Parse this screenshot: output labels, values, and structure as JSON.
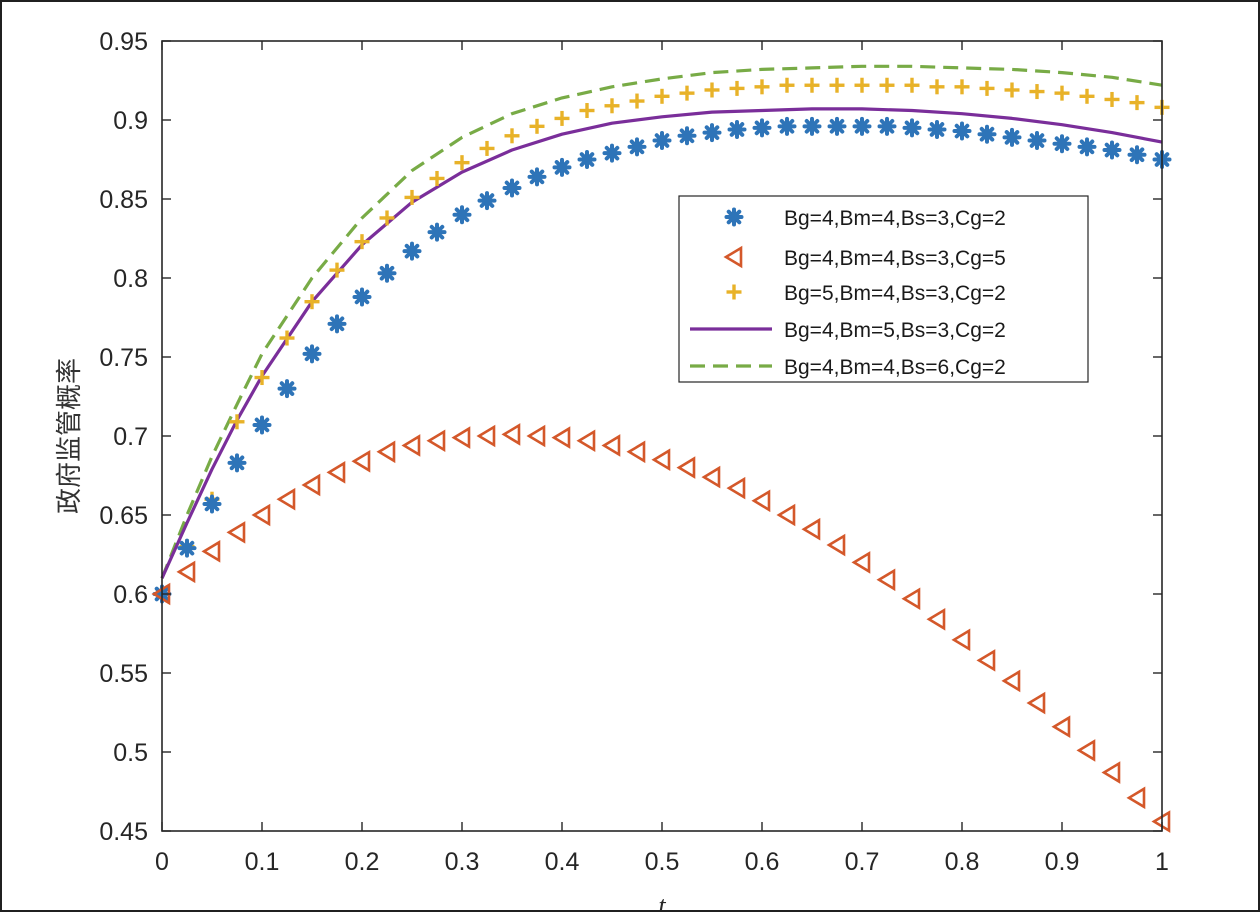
{
  "chart_data": {
    "type": "line",
    "title": "",
    "xlabel": "t",
    "ylabel": "政府监管概率",
    "xlim": [
      0,
      1
    ],
    "ylim": [
      0.45,
      0.95
    ],
    "xticks": [
      0,
      0.1,
      0.2,
      0.3,
      0.4,
      0.5,
      0.6,
      0.7,
      0.8,
      0.9,
      1
    ],
    "xtick_labels": [
      "0",
      "0.1",
      "0.2",
      "0.3",
      "0.4",
      "0.5",
      "0.6",
      "0.7",
      "0.8",
      "0.9",
      "1"
    ],
    "yticks": [
      0.45,
      0.5,
      0.55,
      0.6,
      0.65,
      0.7,
      0.75,
      0.8,
      0.85,
      0.9,
      0.95
    ],
    "ytick_labels": [
      "0.45",
      "0.5",
      "0.55",
      "0.6",
      "0.65",
      "0.7",
      "0.75",
      "0.8",
      "0.85",
      "0.9",
      "0.95"
    ],
    "legend_position": "upper-right",
    "series": [
      {
        "name": "Bg=4,Bm=4,Bs=3,Cg=2",
        "marker": "asterisk",
        "color": "#2e74b8",
        "x": [
          0,
          0.025,
          0.05,
          0.075,
          0.1,
          0.125,
          0.15,
          0.175,
          0.2,
          0.225,
          0.25,
          0.275,
          0.3,
          0.325,
          0.35,
          0.375,
          0.4,
          0.425,
          0.45,
          0.475,
          0.5,
          0.525,
          0.55,
          0.575,
          0.6,
          0.625,
          0.65,
          0.675,
          0.7,
          0.725,
          0.75,
          0.775,
          0.8,
          0.825,
          0.85,
          0.875,
          0.9,
          0.925,
          0.95,
          0.975,
          1.0
        ],
        "y": [
          0.6,
          0.629,
          0.657,
          0.683,
          0.707,
          0.73,
          0.752,
          0.771,
          0.788,
          0.803,
          0.817,
          0.829,
          0.84,
          0.849,
          0.857,
          0.864,
          0.87,
          0.875,
          0.879,
          0.883,
          0.887,
          0.89,
          0.892,
          0.894,
          0.895,
          0.896,
          0.896,
          0.896,
          0.896,
          0.896,
          0.895,
          0.894,
          0.893,
          0.891,
          0.889,
          0.887,
          0.885,
          0.883,
          0.881,
          0.878,
          0.875
        ]
      },
      {
        "name": "Bg=4,Bm=4,Bs=3,Cg=5",
        "marker": "triangle-left",
        "color": "#d4582a",
        "x": [
          0,
          0.025,
          0.05,
          0.075,
          0.1,
          0.125,
          0.15,
          0.175,
          0.2,
          0.225,
          0.25,
          0.275,
          0.3,
          0.325,
          0.35,
          0.375,
          0.4,
          0.425,
          0.45,
          0.475,
          0.5,
          0.525,
          0.55,
          0.575,
          0.6,
          0.625,
          0.65,
          0.675,
          0.7,
          0.725,
          0.75,
          0.775,
          0.8,
          0.825,
          0.85,
          0.875,
          0.9,
          0.925,
          0.95,
          0.975,
          1.0
        ],
        "y": [
          0.6,
          0.614,
          0.627,
          0.639,
          0.65,
          0.66,
          0.669,
          0.677,
          0.684,
          0.69,
          0.694,
          0.697,
          0.699,
          0.7,
          0.701,
          0.7,
          0.699,
          0.697,
          0.694,
          0.69,
          0.685,
          0.68,
          0.674,
          0.667,
          0.659,
          0.65,
          0.641,
          0.631,
          0.62,
          0.609,
          0.597,
          0.584,
          0.571,
          0.558,
          0.545,
          0.531,
          0.516,
          0.501,
          0.487,
          0.471,
          0.456
        ]
      },
      {
        "name": "Bg=5,Bm=4,Bs=3,Cg=2",
        "marker": "plus",
        "color": "#e8b228",
        "x": [
          0,
          0.025,
          0.05,
          0.075,
          0.1,
          0.125,
          0.15,
          0.175,
          0.2,
          0.225,
          0.25,
          0.275,
          0.3,
          0.325,
          0.35,
          0.375,
          0.4,
          0.425,
          0.45,
          0.475,
          0.5,
          0.525,
          0.55,
          0.575,
          0.6,
          0.625,
          0.65,
          0.675,
          0.7,
          0.725,
          0.75,
          0.775,
          0.8,
          0.825,
          0.85,
          0.875,
          0.9,
          0.925,
          0.95,
          0.975,
          1.0
        ],
        "y": [
          0.6,
          0.63,
          0.66,
          0.709,
          0.737,
          0.762,
          0.785,
          0.805,
          0.823,
          0.838,
          0.851,
          0.863,
          0.873,
          0.882,
          0.89,
          0.896,
          0.901,
          0.906,
          0.909,
          0.912,
          0.915,
          0.917,
          0.919,
          0.92,
          0.921,
          0.922,
          0.922,
          0.922,
          0.922,
          0.922,
          0.922,
          0.921,
          0.921,
          0.92,
          0.919,
          0.918,
          0.917,
          0.915,
          0.913,
          0.911,
          0.908
        ]
      },
      {
        "name": "Bg=4,Bm=5,Bs=3,Cg=2",
        "line_style": "solid",
        "color": "#7a2e9a",
        "x": [
          0,
          0.025,
          0.05,
          0.075,
          0.1,
          0.15,
          0.2,
          0.25,
          0.3,
          0.35,
          0.4,
          0.45,
          0.5,
          0.55,
          0.6,
          0.65,
          0.7,
          0.75,
          0.8,
          0.85,
          0.9,
          0.95,
          1.0
        ],
        "y": [
          0.61,
          0.645,
          0.679,
          0.71,
          0.738,
          0.785,
          0.821,
          0.848,
          0.867,
          0.881,
          0.891,
          0.898,
          0.902,
          0.905,
          0.906,
          0.907,
          0.907,
          0.906,
          0.904,
          0.901,
          0.897,
          0.892,
          0.886
        ]
      },
      {
        "name": "Bg=4,Bm=4,Bs=6,Cg=2",
        "line_style": "dashed",
        "color": "#78ab46",
        "x": [
          0,
          0.025,
          0.05,
          0.075,
          0.1,
          0.15,
          0.2,
          0.25,
          0.3,
          0.35,
          0.4,
          0.45,
          0.5,
          0.55,
          0.6,
          0.65,
          0.7,
          0.75,
          0.8,
          0.85,
          0.9,
          0.95,
          1.0
        ],
        "y": [
          0.61,
          0.65,
          0.687,
          0.72,
          0.752,
          0.8,
          0.838,
          0.868,
          0.889,
          0.904,
          0.914,
          0.921,
          0.926,
          0.93,
          0.932,
          0.933,
          0.934,
          0.934,
          0.933,
          0.932,
          0.93,
          0.927,
          0.922
        ]
      }
    ]
  }
}
